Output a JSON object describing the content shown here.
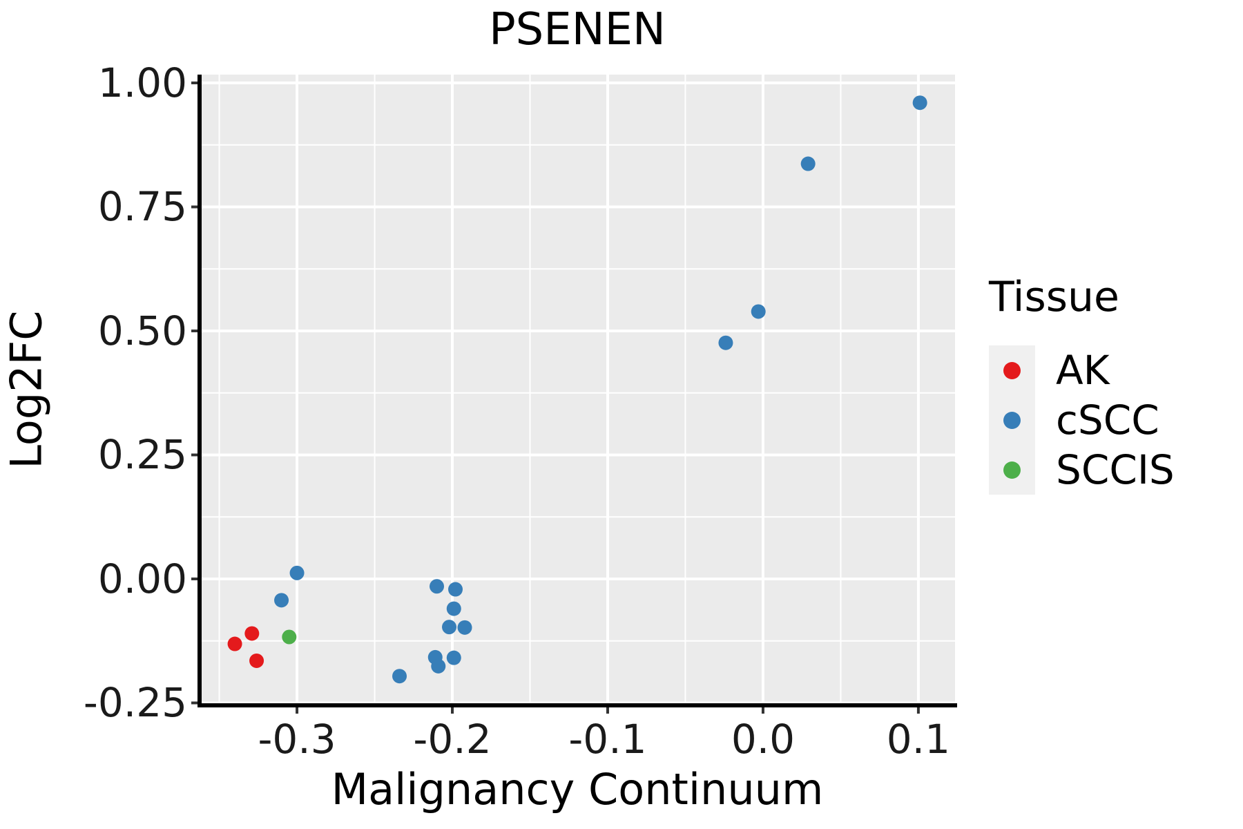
{
  "title": "PSENEN",
  "x_axis": {
    "title": "Malignancy Continuum",
    "ticks": [
      {
        "value": -0.3,
        "label": "-0.3"
      },
      {
        "value": -0.2,
        "label": "-0.2"
      },
      {
        "value": -0.1,
        "label": "-0.1"
      },
      {
        "value": 0.0,
        "label": "0.0"
      },
      {
        "value": 0.1,
        "label": "0.1"
      }
    ]
  },
  "y_axis": {
    "title": "Log2FC",
    "ticks": [
      {
        "value": 1.0,
        "label": "1.00"
      },
      {
        "value": 0.75,
        "label": "0.75"
      },
      {
        "value": 0.5,
        "label": "0.50"
      },
      {
        "value": 0.25,
        "label": "0.25"
      },
      {
        "value": 0.0,
        "label": "0.00"
      },
      {
        "value": -0.25,
        "label": "-0.25"
      }
    ]
  },
  "legend": {
    "title": "Tissue",
    "items": [
      {
        "label": "AK",
        "color": "#E41A1C"
      },
      {
        "label": "cSCC",
        "color": "#377EB8"
      },
      {
        "label": "SCCIS",
        "color": "#4DAF4A"
      }
    ]
  },
  "colors": {
    "panel_background": "#EBEBEB",
    "gridline": "#FFFFFF",
    "axis_line": "#000000",
    "tick_mark": "#333333",
    "legend_key_background": "#F0F0F0",
    "ak_red": "#E41A1C",
    "cscc_blue": "#377EB8",
    "sccis_green": "#4DAF4A"
  },
  "chart_data": {
    "type": "scatter",
    "title": "PSENEN",
    "xlabel": "Malignancy Continuum",
    "ylabel": "Log2FC",
    "xlim": [
      -0.3627,
      0.1236
    ],
    "ylim": [
      -0.2549,
      1.0167
    ],
    "x_major_ticks": [
      -0.3,
      -0.2,
      -0.1,
      0.0,
      0.1
    ],
    "y_major_ticks": [
      -0.25,
      0.0,
      0.25,
      0.5,
      0.75,
      1.0
    ],
    "x_minor_gridlines": [
      -0.35,
      -0.25,
      -0.15,
      -0.05,
      0.05
    ],
    "y_minor_gridlines": [
      -0.125,
      0.125,
      0.375,
      0.625,
      0.875
    ],
    "grid": true,
    "legend_position": "right",
    "legend_title": "Tissue",
    "series": [
      {
        "name": "AK",
        "color": "#E41A1C",
        "points": [
          [
            -0.329,
            -0.11
          ],
          [
            -0.34,
            -0.131
          ],
          [
            -0.326,
            -0.165
          ]
        ]
      },
      {
        "name": "cSCC",
        "color": "#377EB8",
        "points": [
          [
            0.101,
            0.96
          ],
          [
            0.029,
            0.837
          ],
          [
            -0.003,
            0.539
          ],
          [
            -0.024,
            0.476
          ],
          [
            -0.3,
            0.012
          ],
          [
            -0.31,
            -0.043
          ],
          [
            -0.21,
            -0.015
          ],
          [
            -0.198,
            -0.021
          ],
          [
            -0.199,
            -0.06
          ],
          [
            -0.202,
            -0.097
          ],
          [
            -0.192,
            -0.098
          ],
          [
            -0.211,
            -0.158
          ],
          [
            -0.209,
            -0.176
          ],
          [
            -0.199,
            -0.159
          ],
          [
            -0.234,
            -0.196
          ]
        ]
      },
      {
        "name": "SCCIS",
        "color": "#4DAF4A",
        "points": [
          [
            -0.305,
            -0.117
          ]
        ]
      }
    ]
  }
}
